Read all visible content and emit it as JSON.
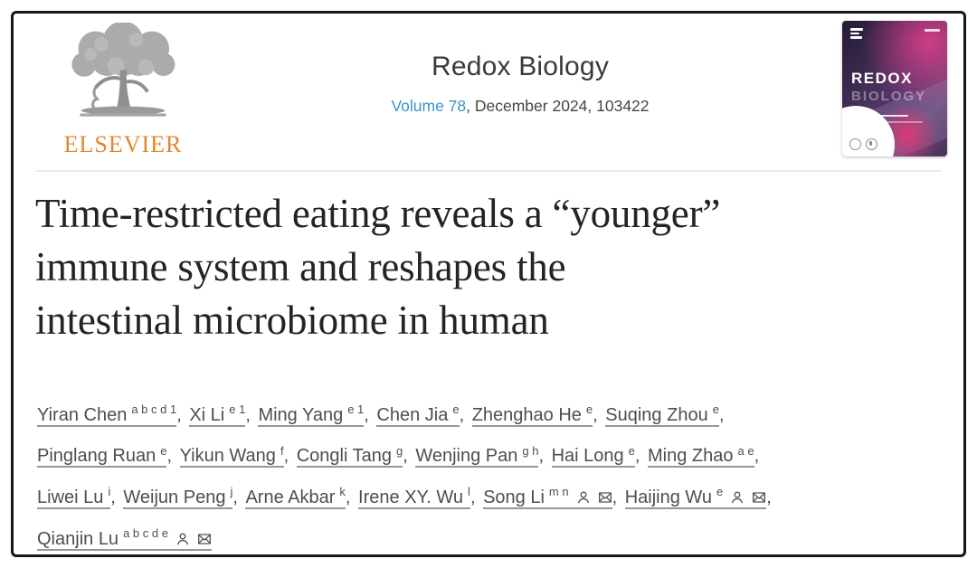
{
  "header": {
    "elsevier_label": "ELSEVIER",
    "journal_title": "Redox Biology",
    "volume_link": "Volume 78",
    "issue_info": ", December 2024, 103422",
    "colors": {
      "link_blue": "#3e92c5",
      "elsevier_orange": "#e2872f",
      "cover_purple": "#3c2a50",
      "cover_pink": "#e73e8c"
    },
    "cover": {
      "title_line1": "REDOX",
      "title_line2": "BIOLOGY"
    }
  },
  "article": {
    "title_lines": [
      "Time-restricted eating reveals a “younger”",
      "immune system and reshapes the",
      "intestinal microbiome in human"
    ]
  },
  "authors": [
    {
      "name": "Yiran Chen",
      "sup": "a b c d 1",
      "icons": [],
      "break_after": false
    },
    {
      "name": "Xi Li",
      "sup": "e 1",
      "icons": [],
      "break_after": false
    },
    {
      "name": "Ming Yang",
      "sup": "e 1",
      "icons": [],
      "break_after": false
    },
    {
      "name": "Chen Jia",
      "sup": "e",
      "icons": [],
      "break_after": false
    },
    {
      "name": "Zhenghao He",
      "sup": "e",
      "icons": [],
      "break_after": false
    },
    {
      "name": "Suqing Zhou",
      "sup": "e",
      "icons": [],
      "break_after": true
    },
    {
      "name": "Pinglang Ruan",
      "sup": "e",
      "icons": [],
      "break_after": false
    },
    {
      "name": "Yikun Wang",
      "sup": "f",
      "icons": [],
      "break_after": false
    },
    {
      "name": "Congli Tang",
      "sup": "g",
      "icons": [],
      "break_after": false
    },
    {
      "name": "Wenjing Pan",
      "sup": "g h",
      "icons": [],
      "break_after": false
    },
    {
      "name": "Hai Long",
      "sup": "e",
      "icons": [],
      "break_after": false
    },
    {
      "name": "Ming Zhao",
      "sup": "a e",
      "icons": [],
      "break_after": true
    },
    {
      "name": "Liwei Lu",
      "sup": "i",
      "icons": [],
      "break_after": false
    },
    {
      "name": "Weijun Peng",
      "sup": "j",
      "icons": [],
      "break_after": false
    },
    {
      "name": "Arne Akbar",
      "sup": "k",
      "icons": [],
      "break_after": false
    },
    {
      "name": "Irene XY. Wu",
      "sup": "l",
      "icons": [],
      "break_after": false
    },
    {
      "name": "Song Li",
      "sup": "m n",
      "icons": [
        "person-icon",
        "email-icon"
      ],
      "break_after": false
    },
    {
      "name": "Haijing Wu",
      "sup": "e",
      "icons": [
        "person-icon",
        "email-icon"
      ],
      "break_after": true
    },
    {
      "name": "Qianjin Lu",
      "sup": "a b c d e",
      "icons": [
        "person-icon",
        "email-icon"
      ],
      "break_after": false
    }
  ]
}
